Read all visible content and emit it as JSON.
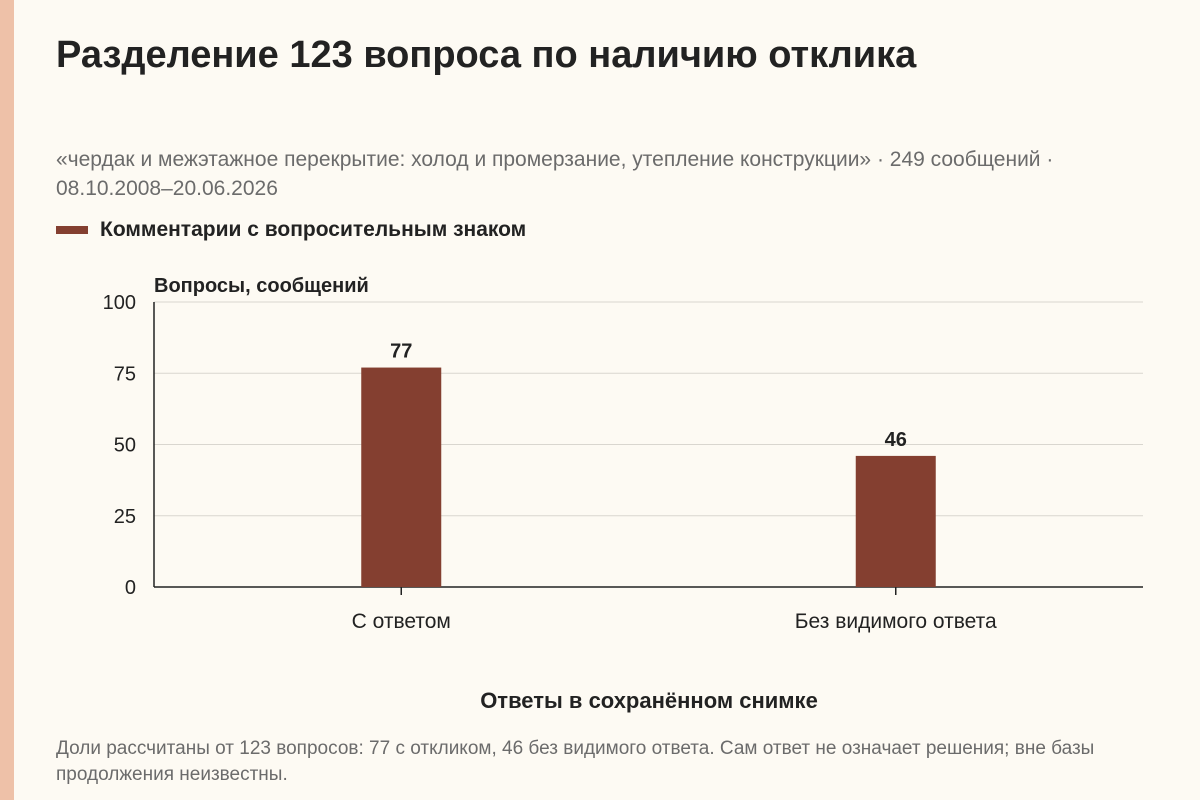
{
  "page": {
    "title": "Разделение 123 вопроса по наличию отклика",
    "subtitle": "«чердак и межэтажное перекрытие: холод и промерзание, утепление конструкции» · 249 сообщений · 08.10.2008–20.06.2026",
    "footnote": "Доли рассчитаны от 123 вопросов: 77 с откликом, 46 без видимого ответа. Сам ответ не означает решения; вне базы продолжения неизвестны."
  },
  "colors": {
    "bar": "#843f30",
    "accent": "#eec1a8"
  },
  "chart_data": {
    "type": "bar",
    "categories": [
      "С ответом",
      "Без видимого ответа"
    ],
    "series": [
      {
        "name": "Комментарии с вопросительным знаком",
        "values": [
          77,
          46
        ]
      }
    ],
    "ylabel": "Вопросы, сообщений",
    "xlabel": "Ответы в сохранённом снимке",
    "ylim": [
      0,
      100
    ],
    "yticks": [
      0,
      25,
      50,
      75,
      100
    ],
    "grid": true,
    "legend": "top-left"
  }
}
